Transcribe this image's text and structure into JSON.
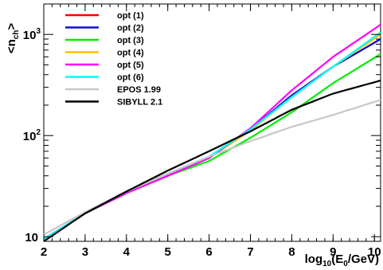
{
  "chart_data": {
    "type": "line",
    "title": "",
    "xlabel": "log10(E0/GeV)",
    "xlabel_parts": {
      "main": "log",
      "sub1": "10",
      "mid": "(E",
      "sub2": "0",
      "end": "/GeV)"
    },
    "ylabel": "<nch>",
    "ylabel_parts": {
      "main": "<n",
      "sub": "ch",
      "end": ">"
    },
    "xlim": [
      2,
      10.15
    ],
    "ylim": [
      9,
      2000
    ],
    "yscale": "log",
    "grid": false,
    "legend_position": "top-left",
    "x_ticks": [
      "2",
      "3",
      "4",
      "5",
      "6",
      "7",
      "8",
      "9",
      "10"
    ],
    "y_ticks": [
      {
        "value": 10,
        "label": "10"
      },
      {
        "value": 100,
        "label": "10",
        "exp": "2"
      },
      {
        "value": 1000,
        "label": "10",
        "exp": "3"
      }
    ],
    "series": [
      {
        "name": "opt (1)",
        "color": "#ff0000",
        "x": [
          2,
          3,
          4,
          5,
          6,
          7,
          8,
          9,
          10.15
        ],
        "y": [
          9.5,
          17,
          27,
          40,
          60,
          115,
          250,
          480,
          900
        ]
      },
      {
        "name": "opt (2)",
        "color": "#1010d0",
        "x": [
          2,
          3,
          4,
          5,
          6,
          7,
          8,
          9,
          10.15
        ],
        "y": [
          9.5,
          17,
          27,
          40,
          60,
          115,
          250,
          480,
          900
        ]
      },
      {
        "name": "opt (3)",
        "color": "#00ee00",
        "x": [
          2,
          3,
          4,
          5,
          6,
          7,
          8,
          9,
          10.15
        ],
        "y": [
          9.5,
          17,
          27,
          40,
          56,
          95,
          170,
          330,
          640
        ]
      },
      {
        "name": "opt (4)",
        "color": "#ffc000",
        "x": [
          2,
          3,
          4,
          5,
          6,
          7,
          8,
          9,
          10.15
        ],
        "y": [
          9.5,
          17,
          27,
          40,
          60,
          112,
          240,
          480,
          1000
        ]
      },
      {
        "name": "opt (5)",
        "color": "#ff00ff",
        "x": [
          2,
          3,
          4,
          5,
          6,
          7,
          8,
          9,
          10.15
        ],
        "y": [
          9.5,
          17,
          27,
          40,
          60,
          118,
          280,
          600,
          1250
        ]
      },
      {
        "name": "opt (6)",
        "color": "#00ffff",
        "x": [
          2,
          3,
          4,
          5,
          6,
          7,
          8,
          9,
          10.15
        ],
        "y": [
          9.5,
          17,
          28,
          42,
          62,
          115,
          240,
          480,
          1050
        ]
      },
      {
        "name": "EPOS 1.99",
        "color": "#c8c8c8",
        "x": [
          2,
          3,
          4,
          5,
          6,
          7,
          8,
          9,
          10.15
        ],
        "y": [
          10.5,
          17.5,
          28,
          42,
          62,
          88,
          122,
          160,
          225
        ]
      },
      {
        "name": "SIBYLL 2.1",
        "color": "#000000",
        "x": [
          2,
          3,
          4,
          5,
          6,
          7,
          8,
          9,
          10.15
        ],
        "y": [
          9,
          17,
          28,
          45,
          70,
          110,
          180,
          260,
          350
        ]
      }
    ]
  }
}
